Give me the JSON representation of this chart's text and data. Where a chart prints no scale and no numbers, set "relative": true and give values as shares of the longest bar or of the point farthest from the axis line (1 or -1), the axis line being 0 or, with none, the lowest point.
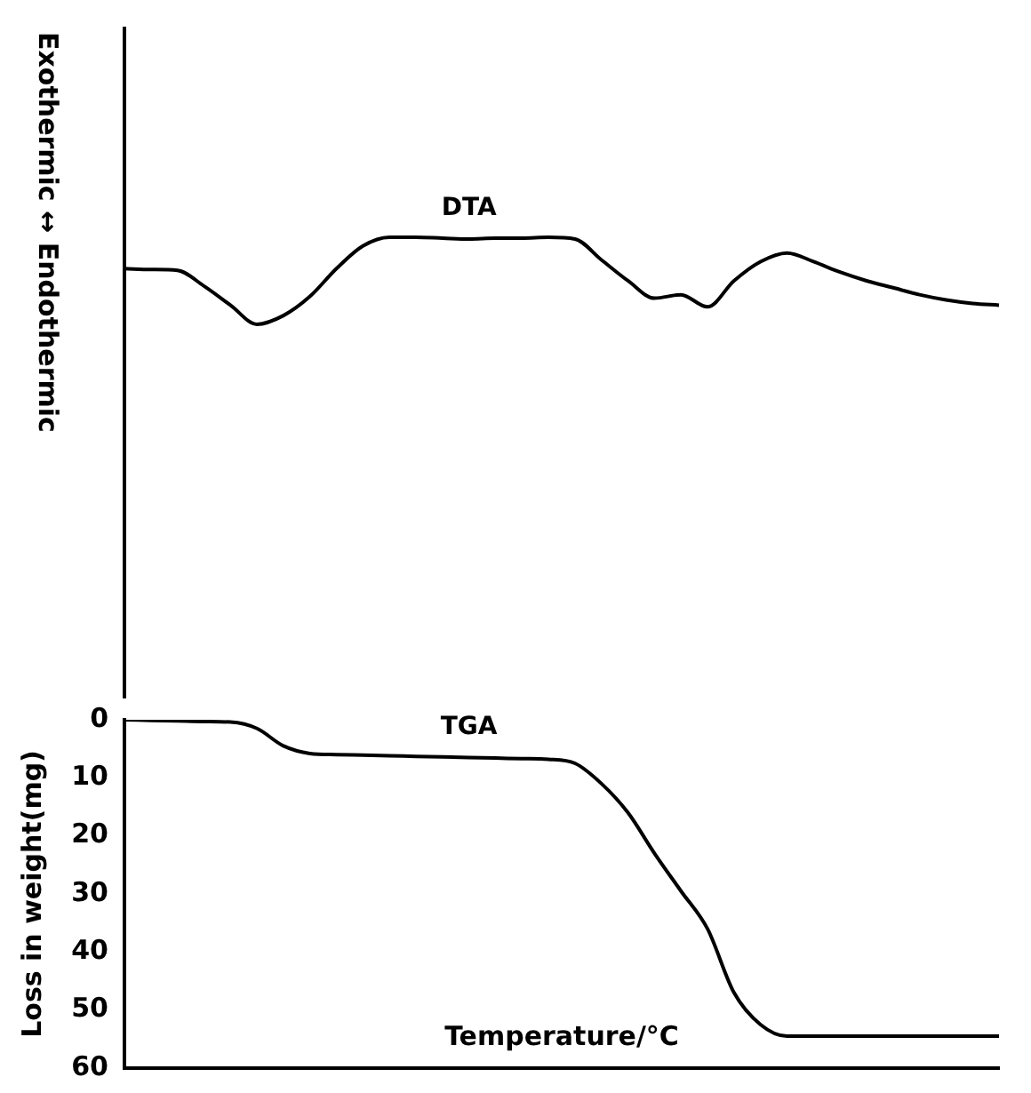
{
  "chart_data": [
    {
      "type": "line",
      "relative": true,
      "ylabel": "Exothermic ↔ Endothermic",
      "marker": "none",
      "grid": false,
      "tick_labels": false,
      "categories": [
        null,
        null,
        null,
        null,
        null,
        null,
        null,
        null,
        null,
        null,
        null,
        null,
        null,
        null,
        null,
        null,
        null,
        null,
        null,
        null,
        null,
        null,
        null,
        null,
        null,
        null,
        null,
        null,
        null,
        null,
        null,
        null,
        null,
        null
      ],
      "series": [
        {
          "name": "DTA",
          "color": "#000000",
          "values": [
            0.64,
            0.63,
            0.62,
            0.44,
            0.22,
            0,
            0.1,
            0.32,
            0.64,
            0.9,
            1,
            1,
            0.99,
            0.98,
            0.99,
            0.99,
            1,
            0.98,
            0.74,
            0.5,
            0.3,
            0.34,
            0.2,
            0.5,
            0.72,
            0.82,
            0.72,
            0.6,
            0.5,
            0.42,
            0.34,
            0.28,
            0.24,
            0.22
          ]
        }
      ]
    },
    {
      "type": "line",
      "xlabel": "Temperature/°C",
      "ylabel": "Loss in weight(mg)",
      "ylim": [
        60,
        0
      ],
      "yticks": [
        0,
        10,
        20,
        30,
        40,
        50,
        60
      ],
      "marker": "none",
      "grid": false,
      "tick_labels": "y",
      "categories": [
        null,
        null,
        null,
        null,
        null,
        null,
        null,
        null,
        null,
        null,
        null,
        null,
        null,
        null,
        null,
        null,
        null,
        null,
        null,
        null,
        null,
        null,
        null,
        null,
        null,
        null,
        null,
        null,
        null,
        null,
        null,
        null,
        null,
        null
      ],
      "series": [
        {
          "name": "TGA",
          "color": "#000000",
          "values": [
            0,
            0.1,
            0.2,
            0.3,
            0.4,
            1.5,
            4.5,
            5.8,
            6,
            6.1,
            6.2,
            6.3,
            6.4,
            6.5,
            6.6,
            6.7,
            6.8,
            7.5,
            11,
            16,
            23,
            29.5,
            36,
            47,
            52.5,
            54.5,
            54.5,
            54.5,
            54.5,
            54.5,
            54.5,
            54.5,
            54.5,
            54.5
          ]
        }
      ]
    }
  ]
}
